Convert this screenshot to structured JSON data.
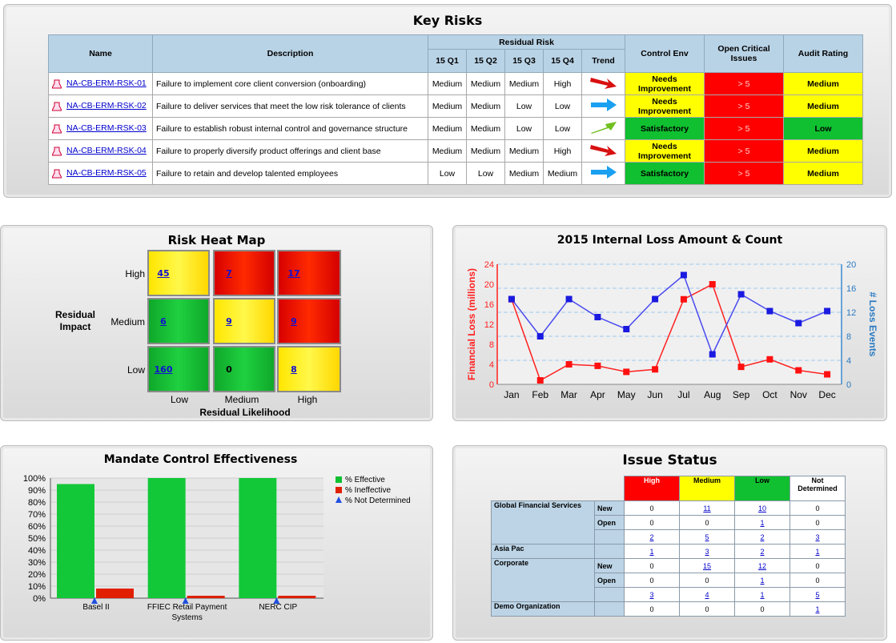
{
  "key_risks": {
    "title": "Key Risks",
    "headers": {
      "name": "Name",
      "description": "Description",
      "residual_risk": "Residual Risk",
      "quarters": [
        "15 Q1",
        "15 Q2",
        "15 Q3",
        "15 Q4"
      ],
      "trend": "Trend",
      "control_env": "Control Env",
      "open_critical": "Open Critical Issues",
      "audit_rating": "Audit Rating"
    },
    "rows": [
      {
        "name": "NA-CB-ERM-RSK-01",
        "description": "Failure to implement core client conversion (onboarding)",
        "q": [
          "Medium",
          "Medium",
          "Medium",
          "High"
        ],
        "trend": "down-red",
        "control_env": "Needs Improvement",
        "control_color": "yellow",
        "open": "> 5",
        "audit": "Medium",
        "audit_color": "yellow"
      },
      {
        "name": "NA-CB-ERM-RSK-02",
        "description": "Failure to deliver services that meet the low risk tolerance of clients",
        "q": [
          "Medium",
          "Medium",
          "Low",
          "Low"
        ],
        "trend": "flat-blue",
        "control_env": "Needs Improvement",
        "control_color": "yellow",
        "open": "> 5",
        "audit": "Medium",
        "audit_color": "yellow"
      },
      {
        "name": "NA-CB-ERM-RSK-03",
        "description": "Failure to establish robust internal control and governance structure",
        "q": [
          "Medium",
          "Medium",
          "Low",
          "Low"
        ],
        "trend": "up-green",
        "control_env": "Satisfactory",
        "control_color": "green",
        "open": "> 5",
        "audit": "Low",
        "audit_color": "green"
      },
      {
        "name": "NA-CB-ERM-RSK-04",
        "description": "Failure to properly diversify product offerings and client base",
        "q": [
          "Medium",
          "Medium",
          "Medium",
          "High"
        ],
        "trend": "down-red",
        "control_env": "Needs Improvement",
        "control_color": "yellow",
        "open": "> 5",
        "audit": "Medium",
        "audit_color": "yellow"
      },
      {
        "name": "NA-CB-ERM-RSK-05",
        "description": "Failure to retain and develop talented employees",
        "q": [
          "Low",
          "Low",
          "Medium",
          "Medium"
        ],
        "trend": "flat-blue",
        "control_env": "Satisfactory",
        "control_color": "green",
        "open": "> 5",
        "audit": "Medium",
        "audit_color": "yellow"
      }
    ]
  },
  "heat_map": {
    "title": "Risk Heat Map",
    "y_title": "Residual Impact",
    "x_title": "Residual Likelihood",
    "y_labels": [
      "High",
      "Medium",
      "Low"
    ],
    "x_labels": [
      "Low",
      "Medium",
      "High"
    ],
    "cells": [
      [
        {
          "v": "45",
          "c": "y",
          "link": true
        },
        {
          "v": "7",
          "c": "r",
          "link": true
        },
        {
          "v": "17",
          "c": "r",
          "link": true
        }
      ],
      [
        {
          "v": "6",
          "c": "g",
          "link": true
        },
        {
          "v": "9",
          "c": "y",
          "link": true
        },
        {
          "v": "9",
          "c": "r",
          "link": true
        }
      ],
      [
        {
          "v": "160",
          "c": "g",
          "link": true
        },
        {
          "v": "0",
          "c": "g",
          "link": false
        },
        {
          "v": "8",
          "c": "y",
          "link": true
        }
      ]
    ]
  },
  "chart_data": [
    {
      "type": "line",
      "title": "2015 Internal Loss Amount & Count",
      "categories": [
        "Jan",
        "Feb",
        "Mar",
        "Apr",
        "May",
        "Jun",
        "Jul",
        "Aug",
        "Sep",
        "Oct",
        "Nov",
        "Dec"
      ],
      "ylabel": "Financial Loss (millions)",
      "y2label": "# Loss Events",
      "ylim": [
        0,
        24
      ],
      "y2lim": [
        0,
        20
      ],
      "yticks": [
        0,
        4,
        8,
        12,
        16,
        20,
        24
      ],
      "y2ticks": [
        0,
        4,
        8,
        12,
        16,
        20
      ],
      "series": [
        {
          "axis": "left",
          "color": "#ff2020",
          "values": [
            17,
            0.8,
            4,
            3.7,
            2.5,
            3,
            17,
            20,
            3.5,
            5,
            2.8,
            2
          ]
        },
        {
          "axis": "right",
          "color": "#4a4af0",
          "values": [
            14.2,
            8,
            14.2,
            11.2,
            9.2,
            14.2,
            18.2,
            5,
            15,
            12.2,
            10.2,
            12.2
          ]
        }
      ]
    },
    {
      "type": "bar",
      "title": "Mandate Control Effectiveness",
      "categories": [
        "Basel II",
        "FFIEC Retail Payment Systems",
        "NERC CIP"
      ],
      "ylim": [
        0,
        100
      ],
      "yticks": [
        "0%",
        "10%",
        "20%",
        "30%",
        "40%",
        "50%",
        "60%",
        "70%",
        "80%",
        "90%",
        "100%"
      ],
      "legend_position": "top-right",
      "series": [
        {
          "name": "% Effective",
          "color": "#10c030",
          "values": [
            95,
            100,
            100
          ]
        },
        {
          "name": "% Ineffective",
          "color": "#e02000",
          "values": [
            8,
            2,
            2
          ]
        },
        {
          "name": "% Not Determined",
          "color": "#2050e0",
          "values": [
            0,
            0,
            0
          ]
        }
      ]
    }
  ],
  "issue_status": {
    "title": "Issue Status",
    "headers": [
      "High",
      "Medium",
      "Low",
      "Not Determined"
    ],
    "header_colors": [
      "#ff0000",
      "#ffff00",
      "#10c030",
      "#ffffff"
    ],
    "groups": [
      {
        "name": "Global Financial Services",
        "rows": [
          {
            "sub": "New",
            "vals": [
              "0",
              "11",
              "10",
              "0"
            ],
            "links": [
              false,
              true,
              true,
              false
            ]
          },
          {
            "sub": "Open",
            "vals": [
              "0",
              "0",
              "1",
              "0"
            ],
            "links": [
              false,
              false,
              true,
              false
            ]
          },
          {
            "sub": "",
            "vals": [
              "2",
              "5",
              "2",
              "3"
            ],
            "links": [
              true,
              true,
              true,
              true
            ]
          }
        ]
      },
      {
        "name": "Asia Pac",
        "rows": [
          {
            "sub": "",
            "vals": [
              "1",
              "3",
              "2",
              "1"
            ],
            "links": [
              true,
              true,
              true,
              true
            ]
          }
        ]
      },
      {
        "name": "Corporate",
        "rows": [
          {
            "sub": "New",
            "vals": [
              "0",
              "15",
              "12",
              "0"
            ],
            "links": [
              false,
              true,
              true,
              false
            ]
          },
          {
            "sub": "Open",
            "vals": [
              "0",
              "0",
              "1",
              "0"
            ],
            "links": [
              false,
              false,
              true,
              false
            ]
          },
          {
            "sub": "",
            "vals": [
              "3",
              "4",
              "1",
              "5"
            ],
            "links": [
              true,
              true,
              true,
              true
            ]
          }
        ]
      },
      {
        "name": "Demo Organization",
        "rows": [
          {
            "sub": "",
            "vals": [
              "0",
              "0",
              "0",
              "1"
            ],
            "links": [
              false,
              false,
              false,
              true
            ]
          }
        ]
      }
    ]
  }
}
